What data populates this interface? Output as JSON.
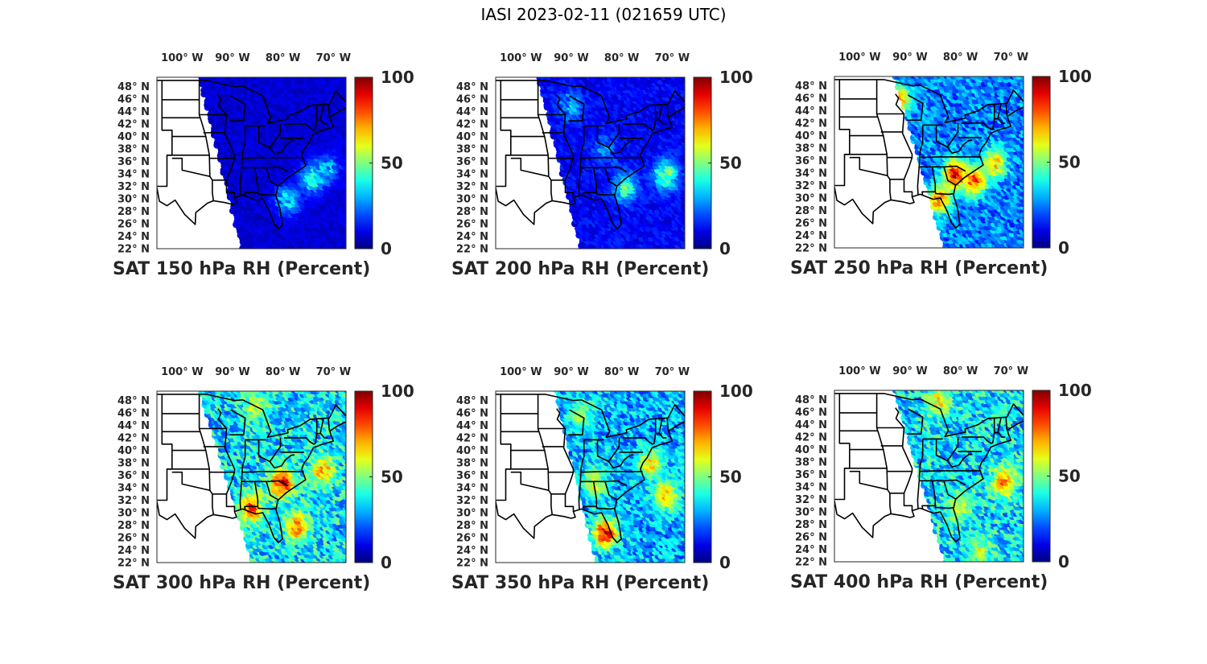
{
  "figure": {
    "title": "IASI 2023-02-11 (021659 UTC)"
  },
  "colormap": "jet",
  "chart_data": [
    {
      "type": "heatmap",
      "title": "SAT 150 hPa RH (Percent)",
      "level_hPa": 150,
      "lon_ticks": [
        "100° W",
        "90° W",
        "80° W",
        "70° W"
      ],
      "lon_tick_values": [
        -100,
        -90,
        -80,
        -70
      ],
      "lat_ticks": [
        "48° N",
        "46° N",
        "44° N",
        "42° N",
        "40° N",
        "38° N",
        "36° N",
        "34° N",
        "32° N",
        "30° N",
        "28° N",
        "26° N",
        "24° N",
        "22° N"
      ],
      "lat_tick_values": [
        48,
        46,
        44,
        42,
        40,
        38,
        36,
        34,
        32,
        30,
        28,
        26,
        24,
        22
      ],
      "colorbar": {
        "min": 0,
        "max": 100,
        "ticks": [
          "100",
          "50",
          "0"
        ],
        "tick_values": [
          100,
          50,
          0
        ]
      },
      "swath_west_edge": {
        "north_lon": -96.5,
        "south_lon": -88.0
      },
      "typical_rh": 8,
      "moist_regions": [
        {
          "lon": -74,
          "lat": 33.5,
          "rh": 40
        },
        {
          "lon": -71,
          "lat": 35,
          "rh": 30
        },
        {
          "lon": -79,
          "lat": 30,
          "rh": 35
        }
      ]
    },
    {
      "type": "heatmap",
      "title": "SAT 200 hPa RH (Percent)",
      "level_hPa": 200,
      "lon_ticks": [
        "100° W",
        "90° W",
        "80° W",
        "70° W"
      ],
      "lon_tick_values": [
        -100,
        -90,
        -80,
        -70
      ],
      "lat_ticks": [
        "48° N",
        "46° N",
        "44° N",
        "42° N",
        "40° N",
        "38° N",
        "36° N",
        "34° N",
        "32° N",
        "30° N",
        "28° N",
        "26° N",
        "24° N",
        "22° N"
      ],
      "lat_tick_values": [
        48,
        46,
        44,
        42,
        40,
        38,
        36,
        34,
        32,
        30,
        28,
        26,
        24,
        22
      ],
      "colorbar": {
        "min": 0,
        "max": 100,
        "ticks": [
          "100",
          "50",
          "0"
        ],
        "tick_values": [
          100,
          50,
          0
        ]
      },
      "swath_west_edge": {
        "north_lon": -96.5,
        "south_lon": -88.0
      },
      "typical_rh": 12,
      "moist_regions": [
        {
          "lon": -79,
          "lat": 32,
          "rh": 45
        },
        {
          "lon": -71,
          "lat": 34,
          "rh": 50
        },
        {
          "lon": -90,
          "lat": 45,
          "rh": 30
        },
        {
          "lon": -83,
          "lat": 38,
          "rh": 25
        }
      ]
    },
    {
      "type": "heatmap",
      "title": "SAT 250 hPa RH (Percent)",
      "level_hPa": 250,
      "lon_ticks": [
        "100° W",
        "90° W",
        "80° W",
        "70° W"
      ],
      "lon_tick_values": [
        -100,
        -90,
        -80,
        -70
      ],
      "lat_ticks": [
        "48° N",
        "46° N",
        "44° N",
        "42° N",
        "40° N",
        "38° N",
        "36° N",
        "34° N",
        "32° N",
        "30° N",
        "28° N",
        "26° N",
        "24° N",
        "22° N"
      ],
      "lat_tick_values": [
        48,
        46,
        44,
        42,
        40,
        38,
        36,
        34,
        32,
        30,
        28,
        26,
        24,
        22
      ],
      "colorbar": {
        "min": 0,
        "max": 100,
        "ticks": [
          "100",
          "50",
          "0"
        ],
        "tick_values": [
          100,
          50,
          0
        ]
      },
      "swath_west_edge": {
        "north_lon": -93.0,
        "south_lon": -83.0
      },
      "typical_rh": 25,
      "moist_regions": [
        {
          "lon": -81,
          "lat": 34,
          "rh": 90
        },
        {
          "lon": -77,
          "lat": 33,
          "rh": 80
        },
        {
          "lon": -84,
          "lat": 30,
          "rh": 75
        },
        {
          "lon": -92,
          "lat": 46,
          "rh": 70
        },
        {
          "lon": -73,
          "lat": 36,
          "rh": 70
        }
      ]
    },
    {
      "type": "heatmap",
      "title": "SAT 300 hPa RH (Percent)",
      "level_hPa": 300,
      "lon_ticks": [
        "100° W",
        "90° W",
        "80° W",
        "70° W"
      ],
      "lon_tick_values": [
        -100,
        -90,
        -80,
        -70
      ],
      "lat_ticks": [
        "48° N",
        "46° N",
        "44° N",
        "42° N",
        "40° N",
        "38° N",
        "36° N",
        "34° N",
        "32° N",
        "30° N",
        "28° N",
        "26° N",
        "24° N",
        "22° N"
      ],
      "lat_tick_values": [
        48,
        46,
        44,
        42,
        40,
        38,
        36,
        34,
        32,
        30,
        28,
        26,
        24,
        22
      ],
      "colorbar": {
        "min": 0,
        "max": 100,
        "ticks": [
          "100",
          "50",
          "0"
        ],
        "tick_values": [
          100,
          50,
          0
        ]
      },
      "swath_west_edge": {
        "north_lon": -96.5,
        "south_lon": -86.0
      },
      "typical_rh": 35,
      "moist_regions": [
        {
          "lon": -80,
          "lat": 35,
          "rh": 90
        },
        {
          "lon": -86,
          "lat": 31,
          "rh": 80
        },
        {
          "lon": -77,
          "lat": 28,
          "rh": 75
        },
        {
          "lon": -72,
          "lat": 37,
          "rh": 70
        },
        {
          "lon": -85,
          "lat": 47,
          "rh": 55
        }
      ]
    },
    {
      "type": "heatmap",
      "title": "SAT 350 hPa RH (Percent)",
      "level_hPa": 350,
      "lon_ticks": [
        "100° W",
        "90° W",
        "80° W",
        "70° W"
      ],
      "lon_tick_values": [
        -100,
        -90,
        -80,
        -70
      ],
      "lat_ticks": [
        "48° N",
        "46° N",
        "44° N",
        "42° N",
        "40° N",
        "38° N",
        "36° N",
        "34° N",
        "32° N",
        "30° N",
        "28° N",
        "26° N",
        "24° N",
        "22° N"
      ],
      "lat_tick_values": [
        48,
        46,
        44,
        42,
        40,
        38,
        36,
        34,
        32,
        30,
        28,
        26,
        24,
        22
      ],
      "colorbar": {
        "min": 0,
        "max": 100,
        "ticks": [
          "100",
          "50",
          "0"
        ],
        "tick_values": [
          100,
          50,
          0
        ]
      },
      "swath_west_edge": {
        "north_lon": -93.0,
        "south_lon": -85.0
      },
      "typical_rh": 30,
      "moist_regions": [
        {
          "lon": -83,
          "lat": 27,
          "rh": 90
        },
        {
          "lon": -74,
          "lat": 38,
          "rh": 65
        },
        {
          "lon": -85,
          "lat": 35,
          "rh": 60
        },
        {
          "lon": -88,
          "lat": 46,
          "rh": 55
        },
        {
          "lon": -71,
          "lat": 33,
          "rh": 70
        }
      ]
    },
    {
      "type": "heatmap",
      "title": "SAT 400 hPa RH (Percent)",
      "level_hPa": 400,
      "lon_ticks": [
        "100° W",
        "90° W",
        "80° W",
        "70° W"
      ],
      "lon_tick_values": [
        -100,
        -90,
        -80,
        -70
      ],
      "lat_ticks": [
        "48° N",
        "46° N",
        "44° N",
        "42° N",
        "40° N",
        "38° N",
        "36° N",
        "34° N",
        "32° N",
        "30° N",
        "28° N",
        "26° N",
        "24° N",
        "22° N"
      ],
      "lat_tick_values": [
        48,
        46,
        44,
        42,
        40,
        38,
        36,
        34,
        32,
        30,
        28,
        26,
        24,
        22
      ],
      "colorbar": {
        "min": 0,
        "max": 100,
        "ticks": [
          "100",
          "50",
          "0"
        ],
        "tick_values": [
          100,
          50,
          0
        ]
      },
      "swath_west_edge": {
        "north_lon": -93.0,
        "south_lon": -83.0
      },
      "typical_rh": 35,
      "moist_regions": [
        {
          "lon": -71,
          "lat": 35,
          "rh": 75
        },
        {
          "lon": -84,
          "lat": 48,
          "rh": 65
        },
        {
          "lon": -76,
          "lat": 24,
          "rh": 55
        },
        {
          "lon": -80,
          "lat": 31,
          "rh": 60
        }
      ]
    }
  ]
}
